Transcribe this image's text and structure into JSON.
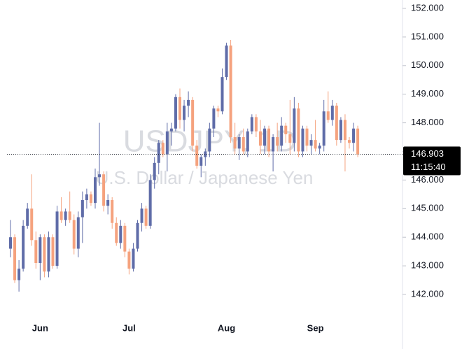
{
  "chart_data": {
    "type": "candlestick",
    "watermark": "USDJPY, 1D",
    "watermark_subtitle": "U.S. Dollar / Japanese Yen",
    "up_color": "#5f6ca8",
    "down_color": "#f5a27e",
    "categories": [
      null,
      null,
      null,
      null,
      null,
      null,
      null,
      "Jun",
      null,
      null,
      null,
      null,
      null,
      null,
      null,
      null,
      null,
      null,
      null,
      null,
      null,
      null,
      null,
      null,
      null,
      null,
      null,
      null,
      "Jul",
      null,
      null,
      null,
      null,
      null,
      null,
      null,
      null,
      null,
      null,
      null,
      null,
      null,
      null,
      null,
      null,
      null,
      null,
      null,
      null,
      null,
      null,
      "Aug",
      null,
      null,
      null,
      null,
      null,
      null,
      null,
      null,
      null,
      null,
      null,
      null,
      null,
      null,
      null,
      null,
      null,
      null,
      null,
      null,
      "Sep",
      null,
      null,
      null,
      null,
      null,
      null,
      null,
      null,
      null,
      null
    ],
    "open": [
      143.6,
      144.0,
      142.5,
      142.9,
      144.4,
      145.0,
      143.9,
      143.1,
      144.0,
      142.8,
      144.0,
      143.0,
      144.9,
      144.6,
      144.9,
      144.6,
      143.6,
      144.7,
      145.3,
      145.5,
      145.2,
      146.1,
      146.2,
      145.1,
      145.3,
      144.5,
      143.8,
      144.4,
      143.5,
      142.9,
      143.6,
      144.5,
      145.0,
      144.4,
      146.0,
      146.6,
      147.3,
      146.9,
      147.7,
      147.8,
      148.9,
      148.1,
      148.6,
      148.8,
      147.2,
      146.5,
      146.8,
      147.0,
      147.8,
      148.5,
      148.4,
      149.6,
      150.7,
      147.5,
      147.1,
      147.5,
      147.0,
      147.7,
      148.2,
      147.7,
      147.2,
      147.8,
      147.0,
      147.5,
      147.2,
      147.9,
      147.6,
      147.3,
      148.5,
      147.0,
      147.8,
      147.2,
      147.4,
      147.1,
      147.2,
      148.4,
      148.1,
      148.6,
      147.4,
      148.1,
      147.4,
      147.3,
      147.8
    ],
    "high": [
      144.6,
      144.1,
      143.2,
      144.6,
      145.2,
      146.2,
      144.2,
      144.1,
      144.1,
      144.2,
      144.1,
      145.1,
      145.4,
      145.0,
      145.6,
      144.8,
      144.9,
      145.6,
      145.7,
      145.6,
      146.4,
      148.0,
      146.3,
      145.5,
      145.4,
      144.7,
      144.6,
      144.5,
      143.6,
      143.8,
      144.6,
      145.2,
      145.1,
      146.2,
      146.8,
      147.4,
      147.4,
      148.0,
      148.0,
      149.0,
      149.2,
      148.8,
      149.1,
      148.9,
      147.4,
      146.9,
      147.1,
      148.0,
      148.6,
      148.6,
      149.9,
      150.8,
      150.9,
      148.0,
      147.6,
      147.8,
      147.8,
      148.3,
      148.3,
      148.1,
      147.9,
      147.9,
      147.6,
      148.0,
      148.2,
      148.0,
      148.8,
      148.9,
      148.7,
      147.9,
      147.9,
      147.6,
      148.1,
      147.3,
      148.8,
      149.1,
      148.8,
      148.7,
      148.2,
      148.3,
      147.5,
      148.0,
      147.9
    ],
    "low": [
      143.3,
      142.4,
      142.1,
      142.8,
      144.3,
      143.7,
      142.9,
      142.5,
      142.6,
      142.6,
      142.9,
      142.9,
      144.5,
      144.4,
      144.5,
      143.4,
      143.3,
      143.8,
      145.0,
      145.1,
      145.0,
      145.8,
      144.9,
      144.8,
      144.3,
      143.7,
      143.6,
      143.3,
      142.7,
      142.8,
      143.5,
      144.2,
      144.3,
      144.3,
      145.7,
      146.2,
      146.8,
      146.3,
      147.2,
      147.7,
      147.8,
      147.7,
      148.2,
      147.0,
      146.4,
      146.1,
      146.5,
      146.8,
      147.5,
      148.2,
      148.3,
      149.5,
      147.3,
      146.9,
      146.7,
      146.9,
      146.8,
      147.6,
      147.5,
      146.9,
      146.9,
      146.8,
      146.3,
      147.0,
      147.0,
      147.3,
      146.9,
      147.0,
      146.8,
      146.8,
      147.0,
      146.9,
      147.0,
      146.9,
      147.0,
      148.0,
      147.9,
      147.2,
      147.3,
      146.3,
      147.1,
      147.0,
      146.8
    ],
    "close": [
      144.0,
      142.5,
      142.9,
      144.4,
      145.0,
      143.9,
      143.1,
      144.0,
      142.8,
      144.0,
      143.0,
      144.9,
      144.6,
      144.9,
      144.6,
      143.6,
      144.7,
      145.3,
      145.5,
      145.2,
      146.1,
      146.2,
      145.1,
      145.3,
      144.5,
      143.8,
      144.4,
      143.5,
      142.9,
      143.6,
      144.5,
      145.0,
      144.4,
      146.0,
      146.6,
      147.3,
      146.9,
      147.7,
      147.8,
      148.9,
      148.1,
      148.6,
      148.8,
      147.2,
      146.5,
      146.8,
      147.0,
      147.8,
      148.5,
      148.4,
      149.6,
      150.7,
      147.5,
      147.1,
      147.5,
      147.0,
      147.7,
      148.2,
      147.7,
      147.2,
      147.8,
      147.0,
      147.5,
      147.2,
      147.9,
      147.6,
      147.3,
      148.5,
      147.0,
      147.8,
      147.2,
      147.4,
      147.1,
      147.2,
      148.4,
      148.1,
      148.6,
      147.4,
      148.1,
      147.4,
      147.3,
      147.8,
      146.9
    ],
    "last_price": 146.903,
    "countdown": "11:15:40",
    "ylim": [
      141.7067,
      152.2934
    ],
    "yticks": [
      {
        "value": 142,
        "label": "142.000"
      },
      {
        "value": 143,
        "label": "143.000"
      },
      {
        "value": 144,
        "label": "144.000"
      },
      {
        "value": 145,
        "label": "145.000"
      },
      {
        "value": 146,
        "label": "146.000"
      },
      {
        "value": 147,
        "label": "147.000"
      },
      {
        "value": 148,
        "label": "148.000"
      },
      {
        "value": 149,
        "label": "149.000"
      },
      {
        "value": 150,
        "label": "150.000"
      },
      {
        "value": 151,
        "label": "151.000"
      },
      {
        "value": 152,
        "label": "152.000"
      }
    ]
  }
}
